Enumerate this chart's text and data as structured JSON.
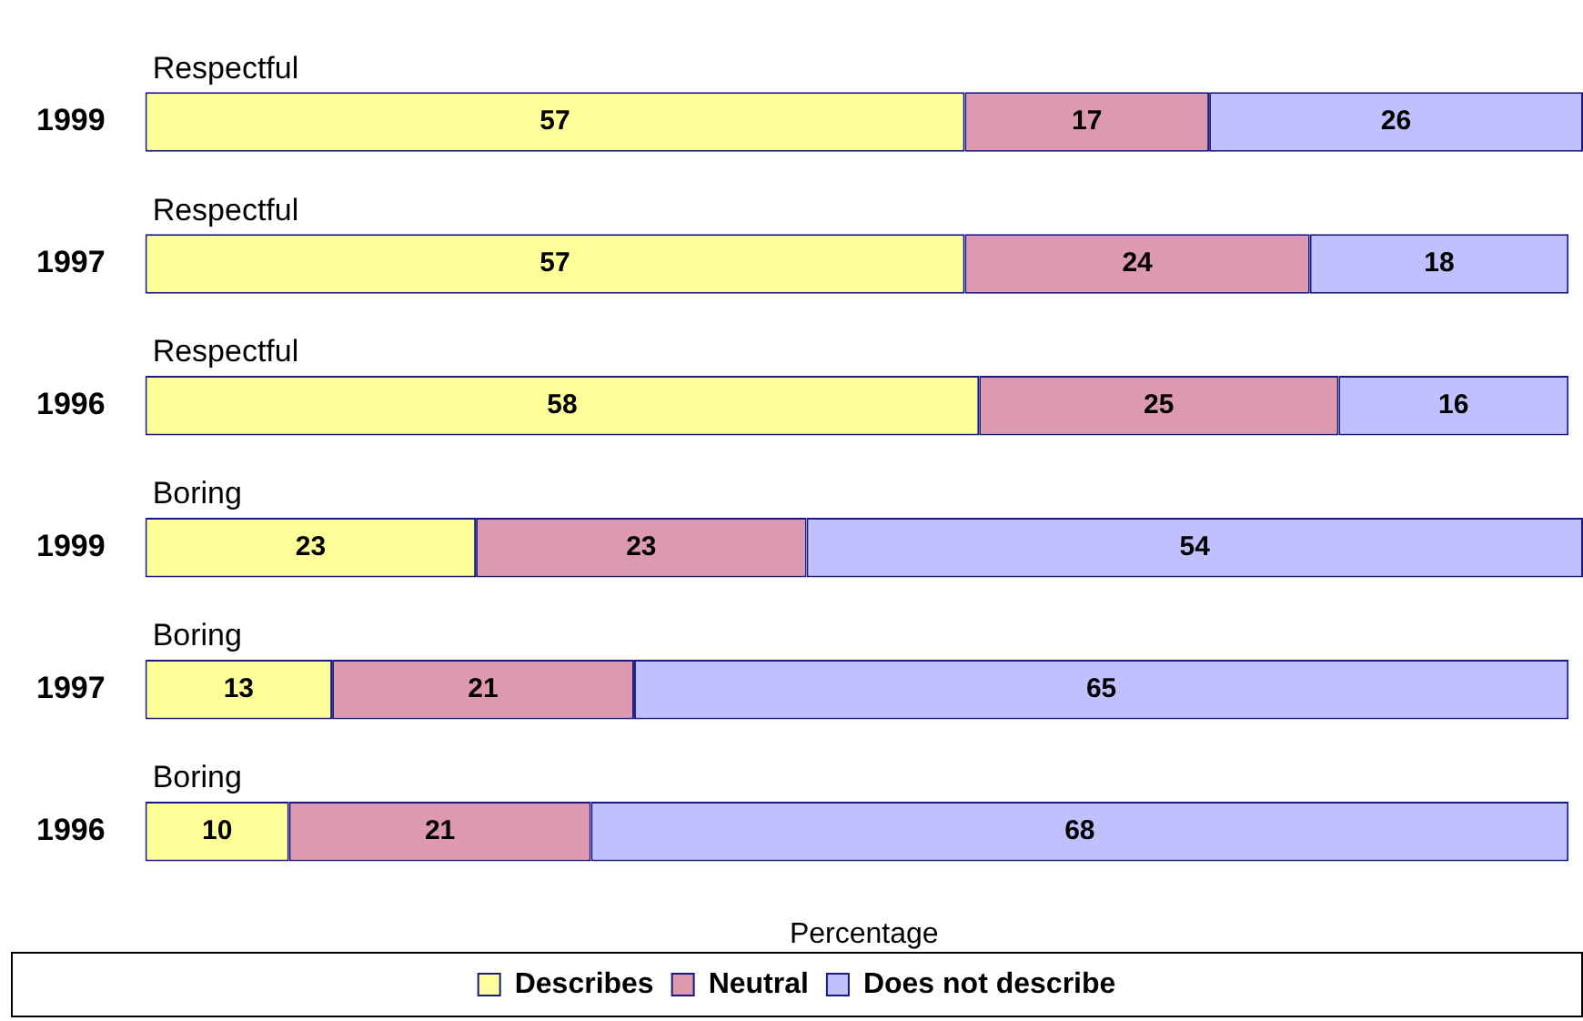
{
  "chart_data": {
    "type": "bar",
    "orientation": "horizontal",
    "stacked": true,
    "xlabel": "Percentage",
    "categories": [
      "1999",
      "1997",
      "1996",
      "1999",
      "1997",
      "1996"
    ],
    "annotations": [
      "Respectful",
      "Respectful",
      "Respectful",
      "Boring",
      "Boring",
      "Boring"
    ],
    "series": [
      {
        "name": "Describes",
        "color": "#ffff99",
        "values": [
          57,
          57,
          58,
          23,
          13,
          10
        ]
      },
      {
        "name": "Neutral",
        "color": "#dd99b0",
        "values": [
          17,
          24,
          25,
          23,
          21,
          21
        ]
      },
      {
        "name": "Does not describe",
        "color": "#c0c0ff",
        "values": [
          26,
          18,
          16,
          54,
          65,
          68
        ]
      }
    ],
    "xlim": [
      0,
      100
    ],
    "data_labels": true,
    "legend": "bottom",
    "tick_labels": "y",
    "grid": false
  }
}
